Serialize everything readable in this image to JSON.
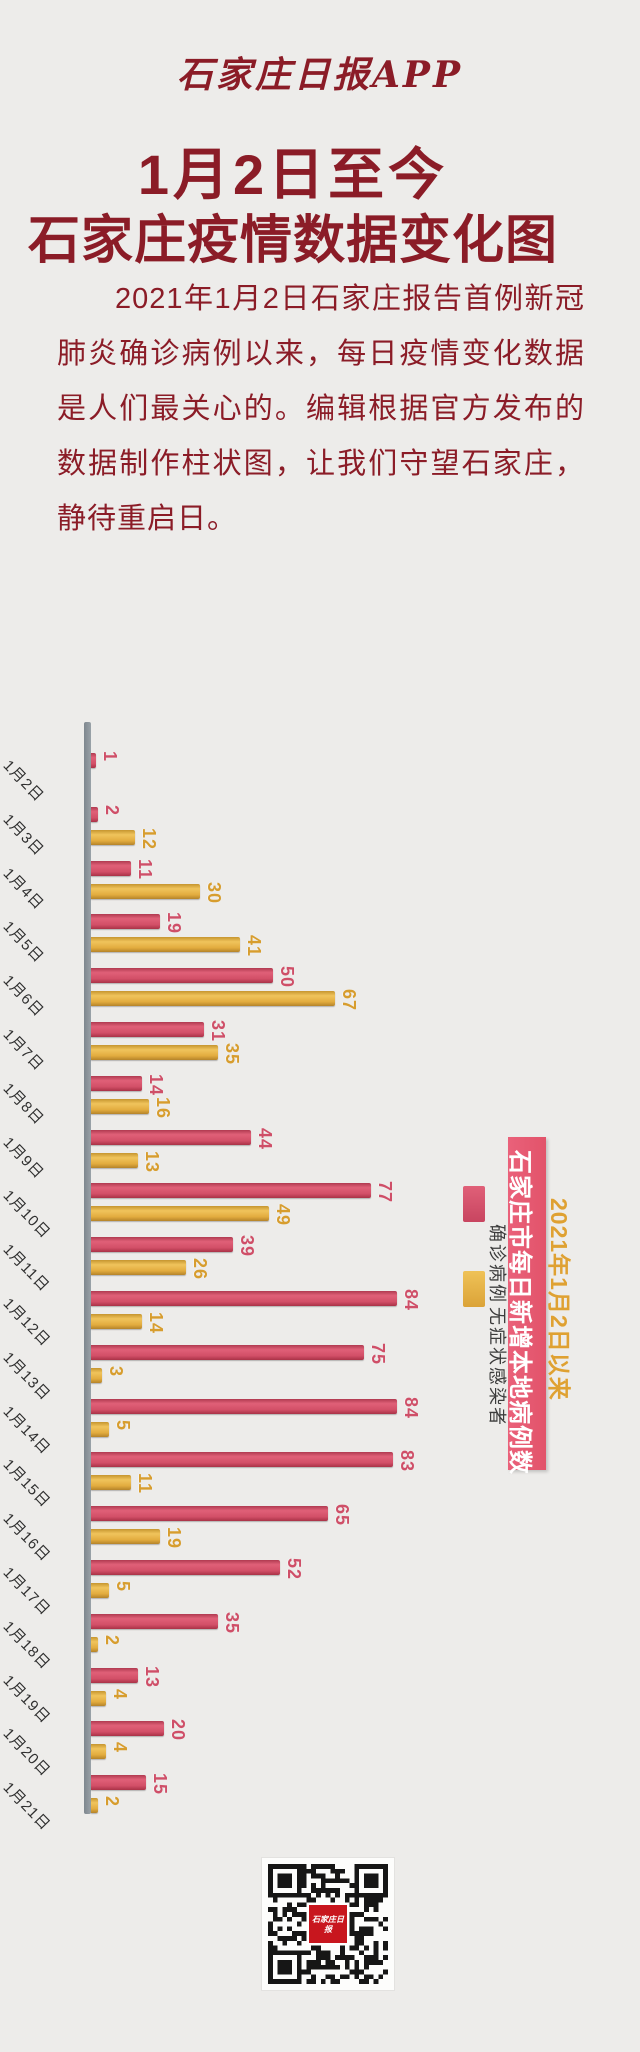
{
  "page": {
    "background": "#edecea",
    "accent": "#8b1c27"
  },
  "header": {
    "logo_text": "石家庄日报APP"
  },
  "title": {
    "line1": "1月2日至今",
    "line2": "石家庄疫情数据变化图"
  },
  "intro": {
    "text": "2021年1月2日石家庄报告首例新冠肺炎确诊病例以来，每日疫情变化数据是人们最关心的。编辑根据官方发布的数据制作柱状图，让我们守望石家庄，静待重启日。"
  },
  "chart_data": {
    "type": "bar",
    "orientation": "horizontal",
    "title_banner": "石家庄市每日新增本地病例数",
    "subtitle_side": "2021年1月2日以来",
    "categories": [
      "1月2日",
      "1月3日",
      "1月4日",
      "1月5日",
      "1月6日",
      "1月7日",
      "1月8日",
      "1月9日",
      "1月10日",
      "1月11日",
      "1月12日",
      "1月13日",
      "1月14日",
      "1月15日",
      "1月16日",
      "1月17日",
      "1月18日",
      "1月19日",
      "1月20日",
      "1月21日"
    ],
    "series": [
      {
        "name": "确诊病例",
        "color": "#d24f67",
        "label_color": "#cf4f68",
        "values": [
          1,
          2,
          11,
          19,
          50,
          31,
          14,
          44,
          77,
          39,
          84,
          75,
          84,
          83,
          65,
          52,
          35,
          13,
          20,
          15
        ]
      },
      {
        "name": "无症状感染者",
        "color": "#e2ac3f",
        "label_color": "#d79d2e",
        "values": [
          0,
          12,
          30,
          41,
          67,
          35,
          16,
          13,
          49,
          26,
          14,
          3,
          5,
          11,
          19,
          5,
          2,
          4,
          4,
          2
        ]
      }
    ],
    "xlim": [
      0,
      90
    ],
    "grid": false,
    "legend_position": "right",
    "axis_color": "#8d969d",
    "banner_bg": "#e5596e",
    "side_note_color": "#dfa132"
  },
  "qr": {
    "label": "石家庄日报",
    "label_bg": "#c8161e"
  }
}
